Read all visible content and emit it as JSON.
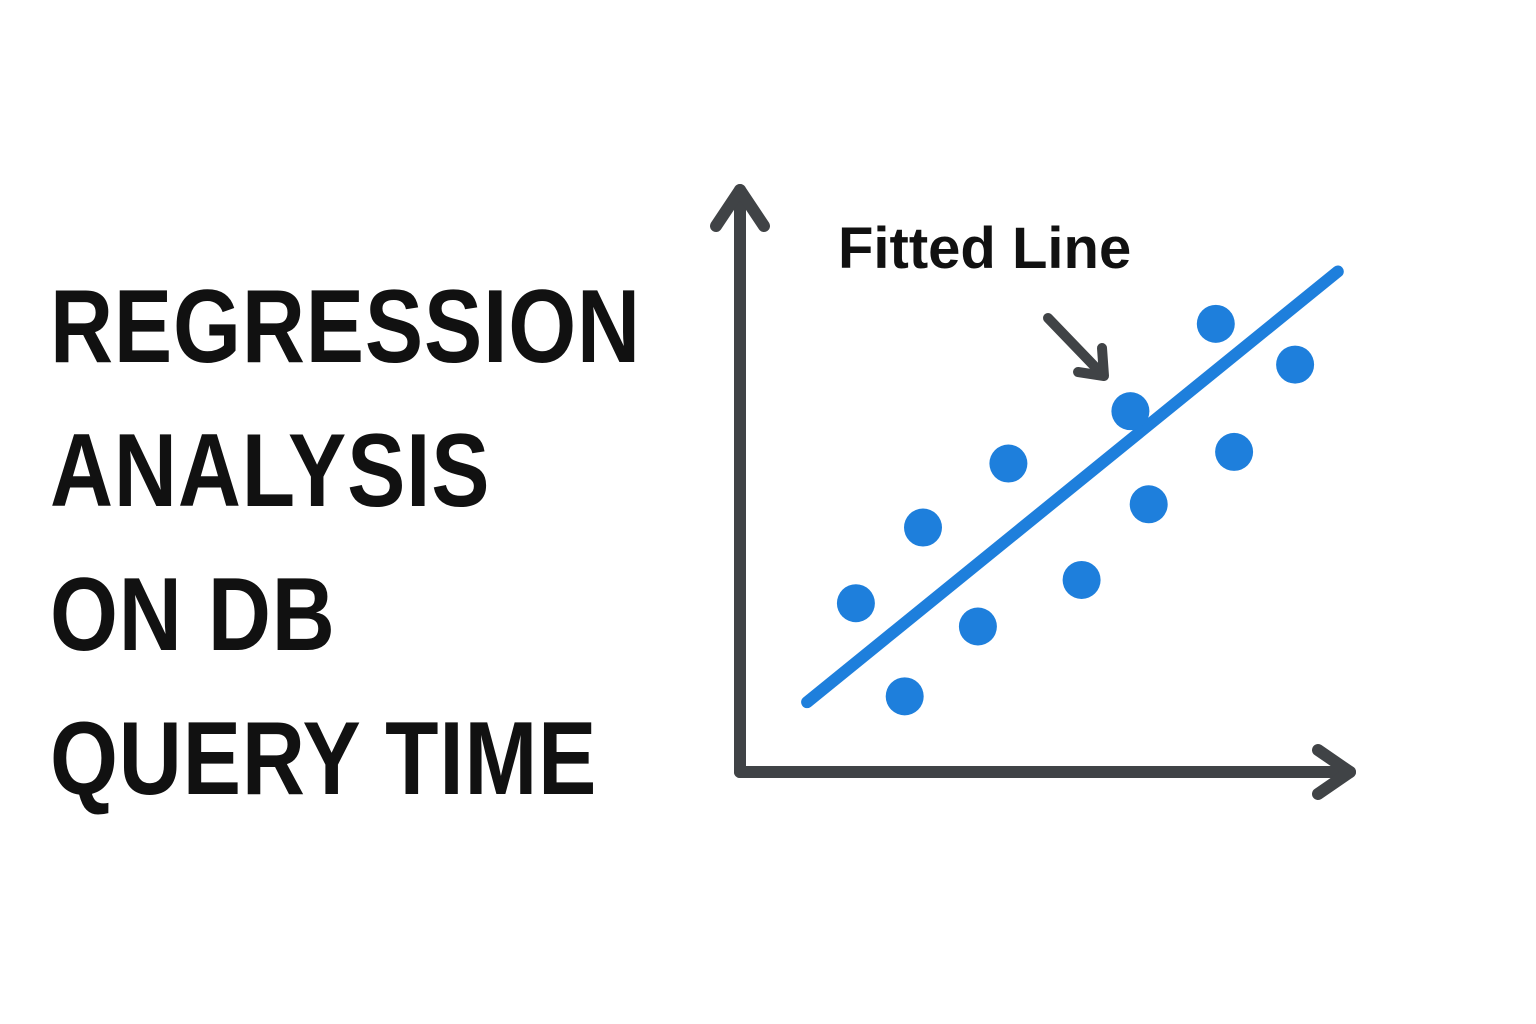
{
  "title_lines": [
    "REGRESSION",
    "ANALYSIS",
    "ON DB",
    "QUERY TIME"
  ],
  "chart_data": {
    "type": "scatter",
    "title": "",
    "xlabel": "",
    "ylabel": "",
    "xlim": [
      0,
      100
    ],
    "ylim": [
      0,
      100
    ],
    "grid": false,
    "points": [
      {
        "x": 19,
        "y": 29
      },
      {
        "x": 27,
        "y": 13
      },
      {
        "x": 30,
        "y": 42
      },
      {
        "x": 39,
        "y": 25
      },
      {
        "x": 44,
        "y": 53
      },
      {
        "x": 56,
        "y": 33
      },
      {
        "x": 64,
        "y": 62
      },
      {
        "x": 67,
        "y": 46
      },
      {
        "x": 78,
        "y": 77
      },
      {
        "x": 81,
        "y": 55
      },
      {
        "x": 91,
        "y": 70
      }
    ],
    "fitted_line": {
      "x1": 11,
      "y1": 12,
      "x2": 98,
      "y2": 86
    },
    "annotation": "Fitted Line",
    "colors": {
      "points": "#1E7FDC",
      "line": "#1E7FDC",
      "axes": "#404346",
      "text": "#111111"
    }
  }
}
